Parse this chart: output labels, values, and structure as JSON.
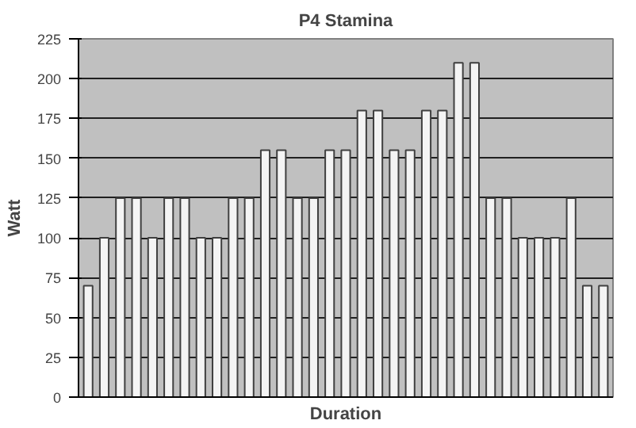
{
  "chart_data": {
    "type": "bar",
    "title": "P4 Stamina",
    "xlabel": "Duration",
    "ylabel": "Watt",
    "categories": [
      null,
      null,
      null,
      null,
      null,
      null,
      null,
      null,
      null,
      null,
      null,
      null,
      null,
      null,
      null,
      null,
      null,
      null,
      null,
      null,
      null,
      null,
      null,
      null,
      null,
      null,
      null,
      null,
      null,
      null,
      null,
      null,
      null
    ],
    "values": [
      70,
      100,
      125,
      125,
      100,
      125,
      125,
      100,
      100,
      125,
      125,
      155,
      155,
      125,
      125,
      155,
      155,
      180,
      180,
      155,
      155,
      180,
      180,
      210,
      210,
      125,
      125,
      100,
      100,
      100,
      125,
      70,
      70
    ],
    "color": "#f4f4f4",
    "ylim": [
      0,
      225
    ],
    "yticks": [
      0,
      25,
      50,
      75,
      100,
      125,
      150,
      175,
      200,
      225
    ],
    "grid": "y"
  }
}
